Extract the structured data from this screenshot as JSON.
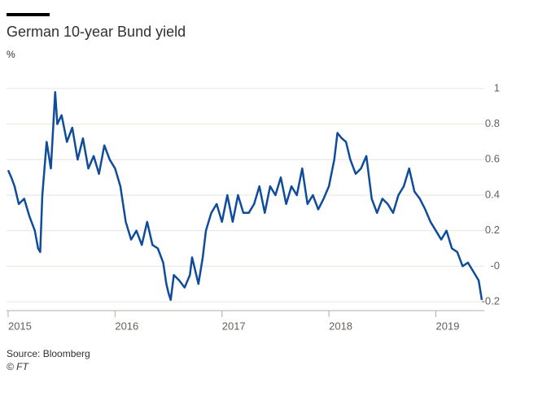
{
  "chart_data": {
    "type": "line",
    "title": "German 10-year Bund yield",
    "y_unit": "%",
    "source": "Source: Bloomberg",
    "credit": "© FT",
    "x": [
      2015.0,
      2015.03,
      2015.06,
      2015.1,
      2015.15,
      2015.2,
      2015.25,
      2015.28,
      2015.3,
      2015.32,
      2015.36,
      2015.4,
      2015.44,
      2015.46,
      2015.5,
      2015.55,
      2015.6,
      2015.65,
      2015.7,
      2015.75,
      2015.8,
      2015.85,
      2015.9,
      2015.95,
      2016.0,
      2016.05,
      2016.1,
      2016.15,
      2016.2,
      2016.25,
      2016.3,
      2016.35,
      2016.4,
      2016.45,
      2016.48,
      2016.5,
      2016.52,
      2016.55,
      2016.6,
      2016.65,
      2016.7,
      2016.72,
      2016.78,
      2016.82,
      2016.85,
      2016.9,
      2016.95,
      2017.0,
      2017.05,
      2017.1,
      2017.15,
      2017.2,
      2017.25,
      2017.3,
      2017.35,
      2017.4,
      2017.45,
      2017.5,
      2017.55,
      2017.6,
      2017.65,
      2017.7,
      2017.75,
      2017.8,
      2017.85,
      2017.9,
      2017.95,
      2018.0,
      2018.05,
      2018.08,
      2018.12,
      2018.16,
      2018.2,
      2018.25,
      2018.3,
      2018.35,
      2018.4,
      2018.45,
      2018.5,
      2018.55,
      2018.6,
      2018.65,
      2018.7,
      2018.75,
      2018.8,
      2018.85,
      2018.9,
      2018.95,
      2019.0,
      2019.05,
      2019.1,
      2019.15,
      2019.2,
      2019.25,
      2019.3,
      2019.35,
      2019.4,
      2019.43
    ],
    "series": [
      {
        "name": "German 10-year Bund yield",
        "color": "#0f4c9a",
        "values": [
          0.54,
          0.5,
          0.45,
          0.35,
          0.38,
          0.28,
          0.2,
          0.1,
          0.08,
          0.4,
          0.7,
          0.55,
          0.98,
          0.8,
          0.85,
          0.7,
          0.78,
          0.6,
          0.72,
          0.55,
          0.62,
          0.52,
          0.68,
          0.6,
          0.55,
          0.45,
          0.25,
          0.15,
          0.2,
          0.12,
          0.25,
          0.12,
          0.1,
          0.02,
          -0.1,
          -0.15,
          -0.19,
          -0.05,
          -0.08,
          -0.12,
          -0.05,
          0.05,
          -0.1,
          0.05,
          0.2,
          0.3,
          0.35,
          0.25,
          0.4,
          0.25,
          0.4,
          0.3,
          0.3,
          0.35,
          0.45,
          0.3,
          0.45,
          0.4,
          0.5,
          0.35,
          0.45,
          0.4,
          0.55,
          0.35,
          0.4,
          0.32,
          0.38,
          0.45,
          0.6,
          0.75,
          0.72,
          0.7,
          0.6,
          0.52,
          0.55,
          0.62,
          0.38,
          0.3,
          0.38,
          0.35,
          0.3,
          0.4,
          0.45,
          0.55,
          0.42,
          0.38,
          0.32,
          0.25,
          0.2,
          0.15,
          0.2,
          0.1,
          0.08,
          0.0,
          0.02,
          -0.03,
          -0.08,
          -0.19
        ]
      }
    ],
    "xlim": [
      2014.985,
      2019.43
    ],
    "xticks": [
      2015,
      2016,
      2017,
      2018,
      2019
    ],
    "ylim": [
      -0.25,
      1.05
    ],
    "yticks": [
      -0.2,
      {
        "value": 0,
        "label": "-0"
      },
      0.2,
      0.4,
      0.6,
      0.8,
      1
    ],
    "grid": true
  }
}
